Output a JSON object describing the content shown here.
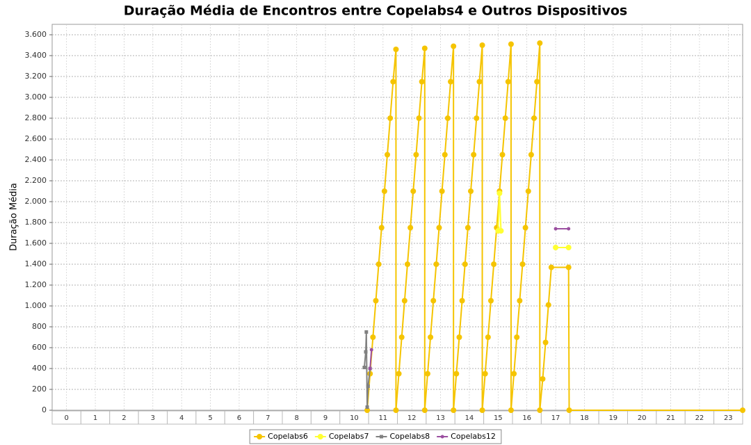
{
  "chart_data": {
    "type": "line",
    "title": "Duração Média de Encontros entre Copelabs4 e Outros Dispositivos",
    "y_label": "Duração Média",
    "xlim": [
      -0.5,
      23.5
    ],
    "xticks": [
      0,
      1,
      2,
      3,
      4,
      5,
      6,
      7,
      8,
      9,
      10,
      11,
      12,
      13,
      14,
      15,
      16,
      17,
      18,
      19,
      20,
      21,
      22,
      23
    ],
    "ylim": [
      0,
      3700
    ],
    "yticks": [
      0,
      200,
      400,
      600,
      800,
      {
        "value": 1000,
        "label": "1.000"
      },
      {
        "value": 1200,
        "label": "1.200"
      },
      {
        "value": 1400,
        "label": "1.400"
      },
      {
        "value": 1600,
        "label": "1.600"
      },
      {
        "value": 1800,
        "label": "1.800"
      },
      {
        "value": 2000,
        "label": "2.000"
      },
      {
        "value": 2200,
        "label": "2.200"
      },
      {
        "value": 2400,
        "label": "2.400"
      },
      {
        "value": 2600,
        "label": "2.600"
      },
      {
        "value": 2800,
        "label": "2.800"
      },
      {
        "value": 3000,
        "label": "3.000"
      },
      {
        "value": 3200,
        "label": "3.200"
      },
      {
        "value": 3400,
        "label": "3.400"
      },
      {
        "value": 3600,
        "label": "3.600"
      }
    ],
    "grid": true,
    "legend": "bottom",
    "series": [
      {
        "name": "Copelabs6",
        "color": "#f5c400",
        "marker": "circle",
        "x": [
          10.45,
          10.55,
          10.65,
          10.75,
          10.85,
          10.95,
          11.05,
          11.15,
          11.25,
          11.35,
          11.45,
          11.45,
          11.55,
          11.65,
          11.75,
          11.85,
          11.95,
          12.05,
          12.15,
          12.25,
          12.35,
          12.45,
          12.45,
          12.55,
          12.65,
          12.75,
          12.85,
          12.95,
          13.05,
          13.15,
          13.25,
          13.35,
          13.45,
          13.45,
          13.55,
          13.65,
          13.75,
          13.85,
          13.95,
          14.05,
          14.15,
          14.25,
          14.35,
          14.45,
          14.45,
          14.55,
          14.65,
          14.75,
          14.85,
          14.95,
          15.05,
          15.15,
          15.25,
          15.35,
          15.45,
          15.45,
          15.55,
          15.65,
          15.75,
          15.85,
          15.95,
          16.05,
          16.15,
          16.25,
          16.35,
          16.45,
          16.45,
          16.55,
          16.65,
          16.75,
          16.85,
          17.45,
          17.47,
          23.5
        ],
        "values": [
          0,
          350,
          700,
          1050,
          1400,
          1750,
          2100,
          2450,
          2800,
          3150,
          3460,
          0,
          350,
          700,
          1050,
          1400,
          1750,
          2100,
          2450,
          2800,
          3150,
          3470,
          0,
          350,
          700,
          1050,
          1400,
          1750,
          2100,
          2450,
          2800,
          3150,
          3490,
          0,
          350,
          700,
          1050,
          1400,
          1750,
          2100,
          2450,
          2800,
          3150,
          3500,
          0,
          350,
          700,
          1050,
          1400,
          1750,
          2100,
          2450,
          2800,
          3150,
          3510,
          0,
          350,
          700,
          1050,
          1400,
          1750,
          2100,
          2450,
          2800,
          3150,
          3520,
          0,
          300,
          650,
          1010,
          1370,
          1370,
          0,
          0
        ]
      },
      {
        "name": "Copelabs7",
        "color": "#ffff33",
        "marker": "circle",
        "x": [
          15.0,
          15.05,
          15.1,
          16.0,
          17.0,
          17.45
        ],
        "values": [
          1720,
          2080,
          1720,
          null,
          1560,
          1560
        ]
      },
      {
        "name": "Copelabs8",
        "color": "#808080",
        "marker": "square",
        "x": [
          10.35,
          10.4,
          10.42,
          10.45,
          10.48,
          10.55
        ],
        "values": [
          410,
          560,
          750,
          30,
          230,
          400
        ]
      },
      {
        "name": "Copelabs12",
        "color": "#9b4fa0",
        "marker": "small",
        "x": [
          10.55,
          10.6,
          10.8,
          17.0,
          17.45
        ],
        "values": [
          400,
          580,
          null,
          1740,
          1740
        ]
      }
    ]
  }
}
